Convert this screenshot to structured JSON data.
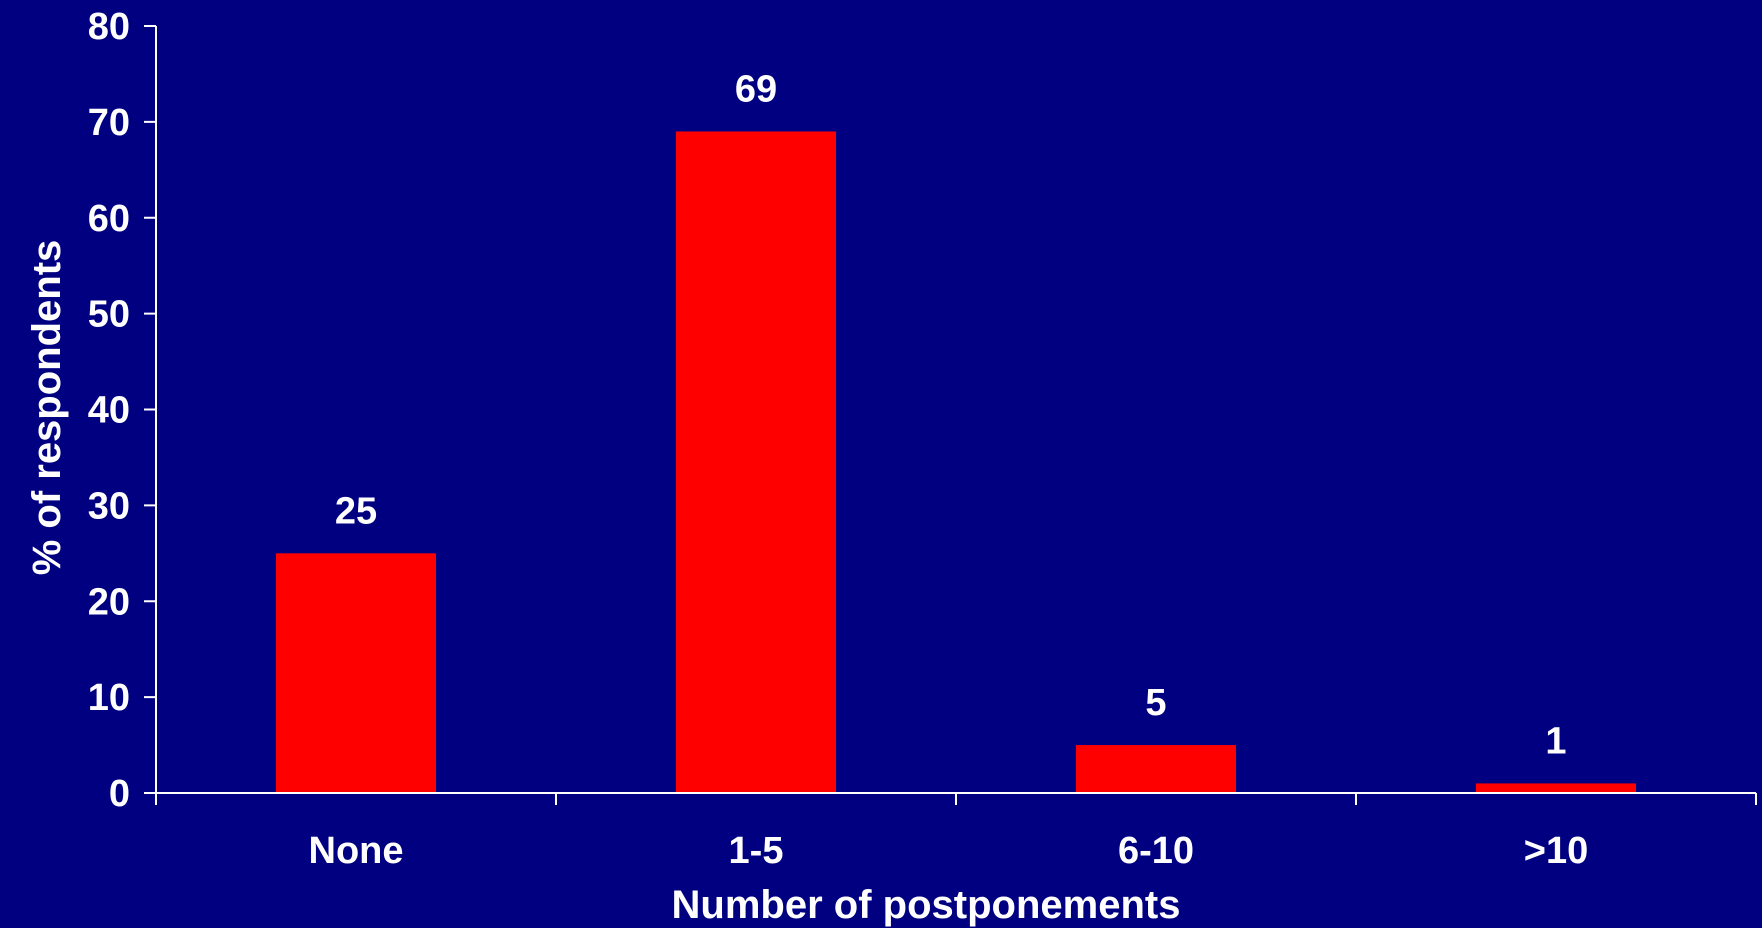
{
  "chart_data": {
    "type": "bar",
    "categories": [
      "None",
      "1-5",
      "6-10",
      ">10"
    ],
    "values": [
      25,
      69,
      5,
      1
    ],
    "data_labels": [
      "25",
      "69",
      "5",
      "1"
    ],
    "title": "",
    "xlabel": "Number of postponements",
    "ylabel": "% of respondents",
    "ylim": [
      0,
      80
    ],
    "yticks": [
      0,
      10,
      20,
      30,
      40,
      50,
      60,
      70,
      80
    ],
    "grid": false,
    "legend": "none",
    "colors": {
      "background": "#000080",
      "bar": "#ff0000",
      "text": "#ffffff",
      "axis": "#ffffff"
    }
  }
}
